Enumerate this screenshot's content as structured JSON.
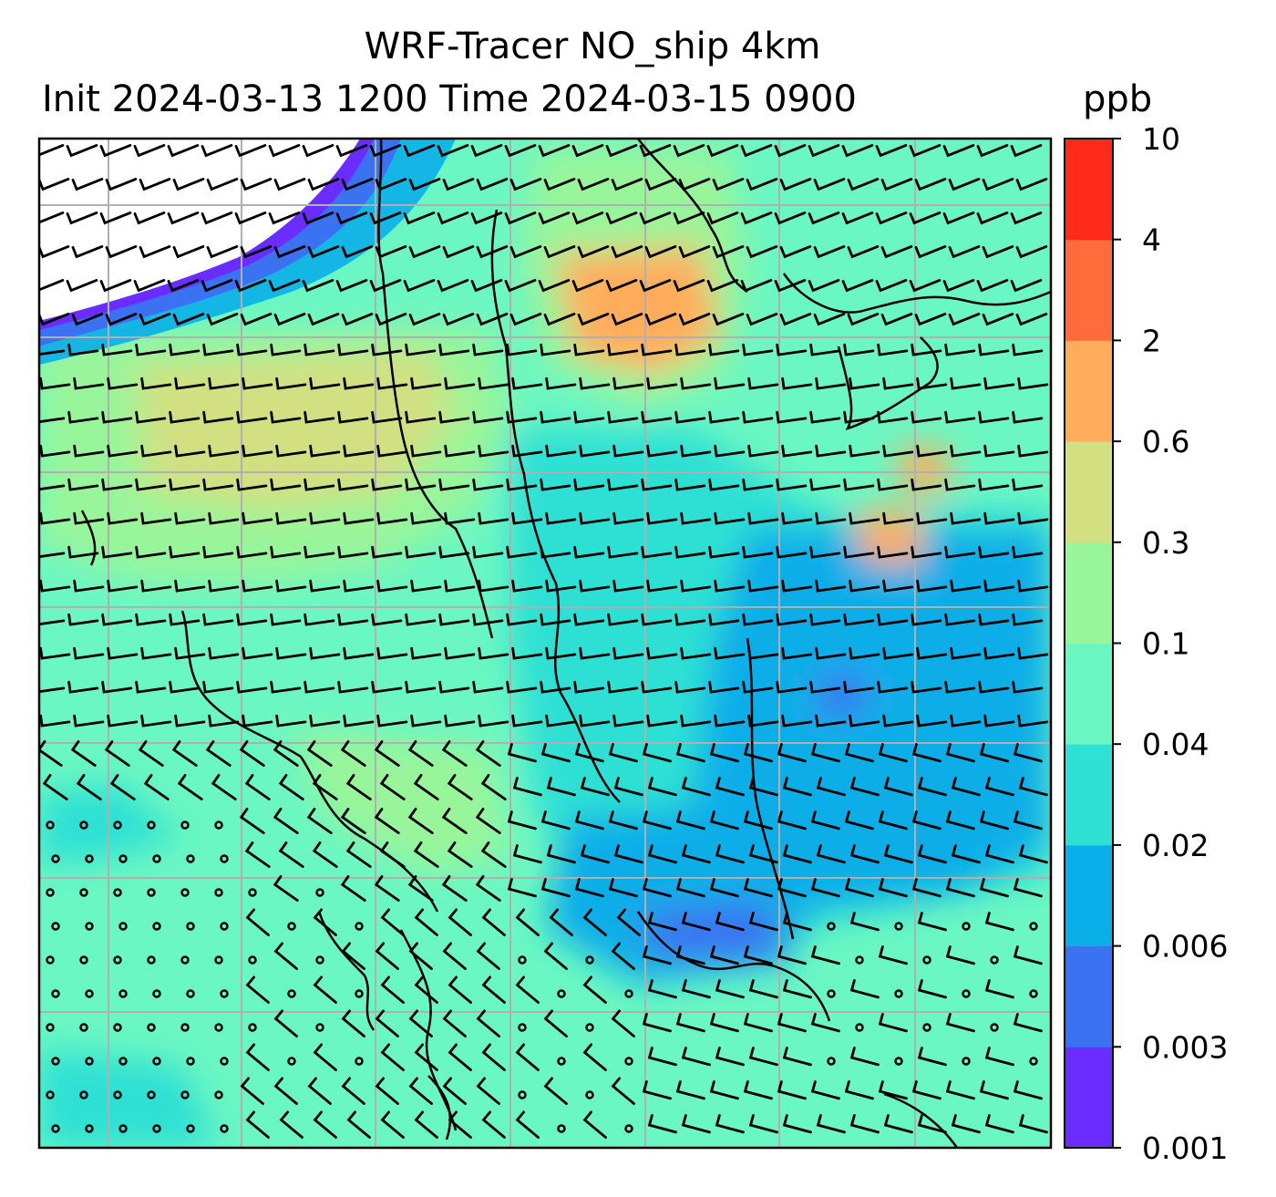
{
  "title": {
    "line1": "WRF-Tracer NO_ship 4km",
    "line2": "Init 2024-03-13 1200 Time 2024-03-15 0900",
    "unit": "ppb"
  },
  "colorbar": {
    "levels": [
      {
        "label": "0.001",
        "color": "#6a2cff"
      },
      {
        "label": "0.003",
        "color": "#3a72f2"
      },
      {
        "label": "0.006",
        "color": "#0aaee8"
      },
      {
        "label": "0.02",
        "color": "#2fe0d4"
      },
      {
        "label": "0.04",
        "color": "#6bf7c3"
      },
      {
        "label": "0.1",
        "color": "#99f59a"
      },
      {
        "label": "0.3",
        "color": "#d2e082"
      },
      {
        "label": "0.6",
        "color": "#ffad5c"
      },
      {
        "label": "2",
        "color": "#ff6b3a"
      },
      {
        "label": "4",
        "color": "#ff2a1a"
      },
      {
        "label": "10",
        "color": null
      }
    ]
  },
  "map": {
    "gridlines": true,
    "wind_barbs": true,
    "coastlines": true
  }
}
